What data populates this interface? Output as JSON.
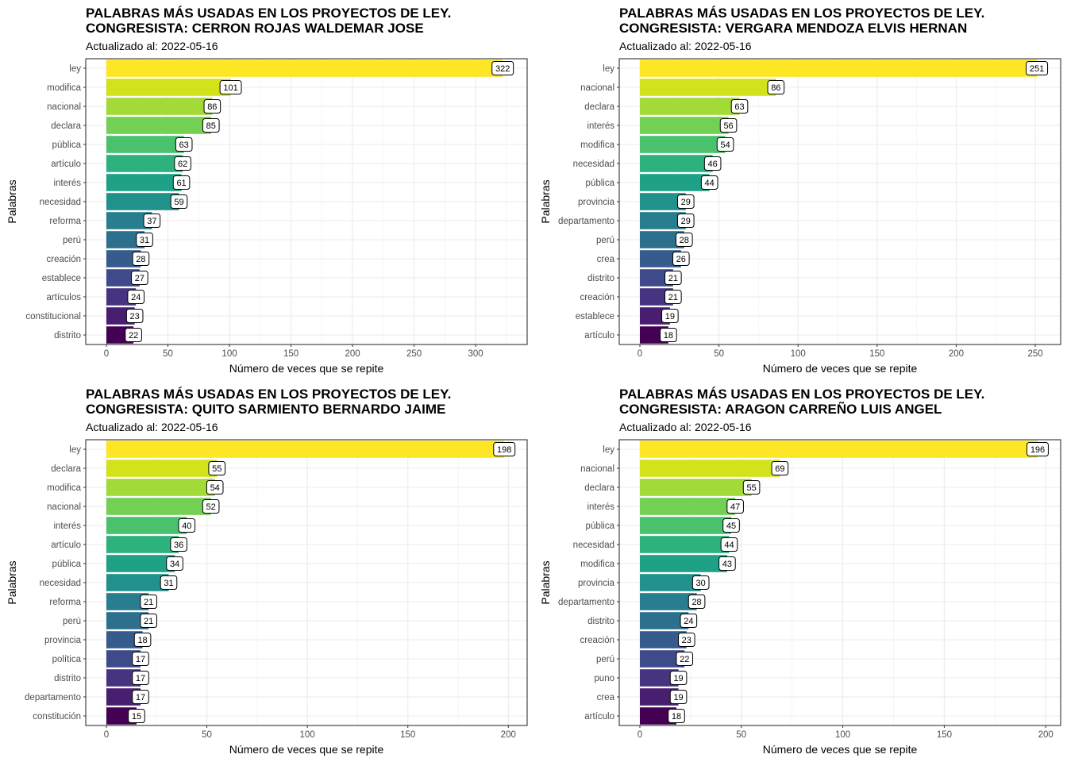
{
  "chart_data": [
    {
      "type": "bar",
      "orientation": "horizontal",
      "title": [
        "PALABRAS MÁS USADAS EN LOS PROYECTOS DE LEY.",
        "CONGRESISTA: CERRON ROJAS WALDEMAR JOSE"
      ],
      "subtitle": "Actualizado al: 2022-05-16",
      "xlabel": "Número de veces que se repite",
      "ylabel": "Palabras",
      "xlim": [
        0,
        338
      ],
      "xticks": [
        0,
        50,
        100,
        150,
        200,
        250,
        300
      ],
      "grid": true,
      "categories": [
        "ley",
        "modifica",
        "nacional",
        "declara",
        "pública",
        "artículo",
        "interés",
        "necesidad",
        "reforma",
        "perú",
        "creación",
        "establece",
        "artículos",
        "constitucional",
        "distrito"
      ],
      "values": [
        322,
        101,
        86,
        85,
        63,
        62,
        61,
        59,
        37,
        31,
        28,
        27,
        24,
        23,
        22
      ]
    },
    {
      "type": "bar",
      "orientation": "horizontal",
      "title": [
        "PALABRAS MÁS USADAS EN LOS PROYECTOS DE LEY.",
        "CONGRESISTA: VERGARA MENDOZA ELVIS HERNAN"
      ],
      "subtitle": "Actualizado al: 2022-05-16",
      "xlabel": "Número de veces que se repite",
      "ylabel": "Palabras",
      "xlim": [
        0,
        263
      ],
      "xticks": [
        0,
        50,
        100,
        150,
        200,
        250
      ],
      "grid": true,
      "categories": [
        "ley",
        "nacional",
        "declara",
        "interés",
        "modifica",
        "necesidad",
        "pública",
        "provincia",
        "departamento",
        "perú",
        "crea",
        "distrito",
        "creación",
        "establece",
        "artículo"
      ],
      "values": [
        251,
        86,
        63,
        56,
        54,
        46,
        44,
        29,
        29,
        28,
        26,
        21,
        21,
        19,
        18
      ]
    },
    {
      "type": "bar",
      "orientation": "horizontal",
      "title": [
        "PALABRAS MÁS USADAS EN LOS PROYECTOS DE LEY.",
        "CONGRESISTA: QUITO SARMIENTO BERNARDO JAIME"
      ],
      "subtitle": "Actualizado al: 2022-05-16",
      "xlabel": "Número de veces que se repite",
      "ylabel": "Palabras",
      "xlim": [
        0,
        207
      ],
      "xticks": [
        0,
        50,
        100,
        150,
        200
      ],
      "grid": true,
      "categories": [
        "ley",
        "declara",
        "modifica",
        "nacional",
        "interés",
        "artículo",
        "pública",
        "necesidad",
        "reforma",
        "perú",
        "provincia",
        "política",
        "distrito",
        "departamento",
        "constitución"
      ],
      "values": [
        198,
        55,
        54,
        52,
        40,
        36,
        34,
        31,
        21,
        21,
        18,
        17,
        17,
        17,
        15
      ]
    },
    {
      "type": "bar",
      "orientation": "horizontal",
      "title": [
        "PALABRAS MÁS USADAS EN LOS PROYECTOS DE LEY.",
        "CONGRESISTA: ARAGON CARREÑO LUIS ANGEL"
      ],
      "subtitle": "Actualizado al: 2022-05-16",
      "xlabel": "Número de veces que se repite",
      "ylabel": "Palabras",
      "xlim": [
        0,
        205
      ],
      "xticks": [
        0,
        50,
        100,
        150,
        200
      ],
      "grid": true,
      "categories": [
        "ley",
        "nacional",
        "declara",
        "interés",
        "pública",
        "necesidad",
        "modifica",
        "provincia",
        "departamento",
        "distrito",
        "creación",
        "perú",
        "puno",
        "crea",
        "artículo"
      ],
      "values": [
        196,
        69,
        55,
        47,
        45,
        44,
        43,
        30,
        28,
        24,
        23,
        22,
        19,
        19,
        18
      ]
    }
  ],
  "palette": [
    "#FDE725",
    "#D2E21B",
    "#A2DA37",
    "#73D055",
    "#4AC16D",
    "#2DB27D",
    "#1FA188",
    "#21918C",
    "#287D8E",
    "#2D708E",
    "#365C8D",
    "#3E4A89",
    "#463480",
    "#481F70",
    "#440154"
  ]
}
